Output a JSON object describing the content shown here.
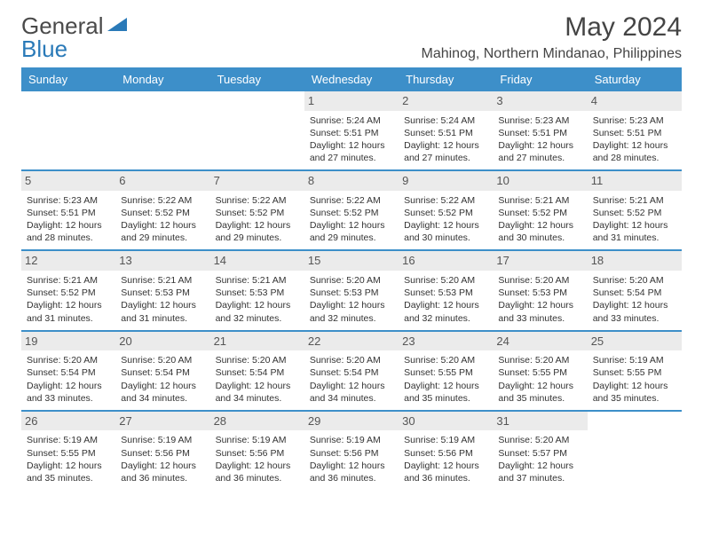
{
  "logo": {
    "general": "General",
    "blue": "Blue"
  },
  "title": "May 2024",
  "location": "Mahinog, Northern Mindanao, Philippines",
  "colors": {
    "header_bg": "#3d8fc9",
    "date_bg": "#ebebeb"
  },
  "day_names": [
    "Sunday",
    "Monday",
    "Tuesday",
    "Wednesday",
    "Thursday",
    "Friday",
    "Saturday"
  ],
  "weeks": [
    [
      null,
      null,
      null,
      {
        "n": "1",
        "sr": "5:24 AM",
        "ss": "5:51 PM",
        "dl": "12 hours and 27 minutes."
      },
      {
        "n": "2",
        "sr": "5:24 AM",
        "ss": "5:51 PM",
        "dl": "12 hours and 27 minutes."
      },
      {
        "n": "3",
        "sr": "5:23 AM",
        "ss": "5:51 PM",
        "dl": "12 hours and 27 minutes."
      },
      {
        "n": "4",
        "sr": "5:23 AM",
        "ss": "5:51 PM",
        "dl": "12 hours and 28 minutes."
      }
    ],
    [
      {
        "n": "5",
        "sr": "5:23 AM",
        "ss": "5:51 PM",
        "dl": "12 hours and 28 minutes."
      },
      {
        "n": "6",
        "sr": "5:22 AM",
        "ss": "5:52 PM",
        "dl": "12 hours and 29 minutes."
      },
      {
        "n": "7",
        "sr": "5:22 AM",
        "ss": "5:52 PM",
        "dl": "12 hours and 29 minutes."
      },
      {
        "n": "8",
        "sr": "5:22 AM",
        "ss": "5:52 PM",
        "dl": "12 hours and 29 minutes."
      },
      {
        "n": "9",
        "sr": "5:22 AM",
        "ss": "5:52 PM",
        "dl": "12 hours and 30 minutes."
      },
      {
        "n": "10",
        "sr": "5:21 AM",
        "ss": "5:52 PM",
        "dl": "12 hours and 30 minutes."
      },
      {
        "n": "11",
        "sr": "5:21 AM",
        "ss": "5:52 PM",
        "dl": "12 hours and 31 minutes."
      }
    ],
    [
      {
        "n": "12",
        "sr": "5:21 AM",
        "ss": "5:52 PM",
        "dl": "12 hours and 31 minutes."
      },
      {
        "n": "13",
        "sr": "5:21 AM",
        "ss": "5:53 PM",
        "dl": "12 hours and 31 minutes."
      },
      {
        "n": "14",
        "sr": "5:21 AM",
        "ss": "5:53 PM",
        "dl": "12 hours and 32 minutes."
      },
      {
        "n": "15",
        "sr": "5:20 AM",
        "ss": "5:53 PM",
        "dl": "12 hours and 32 minutes."
      },
      {
        "n": "16",
        "sr": "5:20 AM",
        "ss": "5:53 PM",
        "dl": "12 hours and 32 minutes."
      },
      {
        "n": "17",
        "sr": "5:20 AM",
        "ss": "5:53 PM",
        "dl": "12 hours and 33 minutes."
      },
      {
        "n": "18",
        "sr": "5:20 AM",
        "ss": "5:54 PM",
        "dl": "12 hours and 33 minutes."
      }
    ],
    [
      {
        "n": "19",
        "sr": "5:20 AM",
        "ss": "5:54 PM",
        "dl": "12 hours and 33 minutes."
      },
      {
        "n": "20",
        "sr": "5:20 AM",
        "ss": "5:54 PM",
        "dl": "12 hours and 34 minutes."
      },
      {
        "n": "21",
        "sr": "5:20 AM",
        "ss": "5:54 PM",
        "dl": "12 hours and 34 minutes."
      },
      {
        "n": "22",
        "sr": "5:20 AM",
        "ss": "5:54 PM",
        "dl": "12 hours and 34 minutes."
      },
      {
        "n": "23",
        "sr": "5:20 AM",
        "ss": "5:55 PM",
        "dl": "12 hours and 35 minutes."
      },
      {
        "n": "24",
        "sr": "5:20 AM",
        "ss": "5:55 PM",
        "dl": "12 hours and 35 minutes."
      },
      {
        "n": "25",
        "sr": "5:19 AM",
        "ss": "5:55 PM",
        "dl": "12 hours and 35 minutes."
      }
    ],
    [
      {
        "n": "26",
        "sr": "5:19 AM",
        "ss": "5:55 PM",
        "dl": "12 hours and 35 minutes."
      },
      {
        "n": "27",
        "sr": "5:19 AM",
        "ss": "5:56 PM",
        "dl": "12 hours and 36 minutes."
      },
      {
        "n": "28",
        "sr": "5:19 AM",
        "ss": "5:56 PM",
        "dl": "12 hours and 36 minutes."
      },
      {
        "n": "29",
        "sr": "5:19 AM",
        "ss": "5:56 PM",
        "dl": "12 hours and 36 minutes."
      },
      {
        "n": "30",
        "sr": "5:19 AM",
        "ss": "5:56 PM",
        "dl": "12 hours and 36 minutes."
      },
      {
        "n": "31",
        "sr": "5:20 AM",
        "ss": "5:57 PM",
        "dl": "12 hours and 37 minutes."
      },
      null
    ]
  ],
  "labels": {
    "sunrise": "Sunrise:",
    "sunset": "Sunset:",
    "daylight": "Daylight:"
  }
}
